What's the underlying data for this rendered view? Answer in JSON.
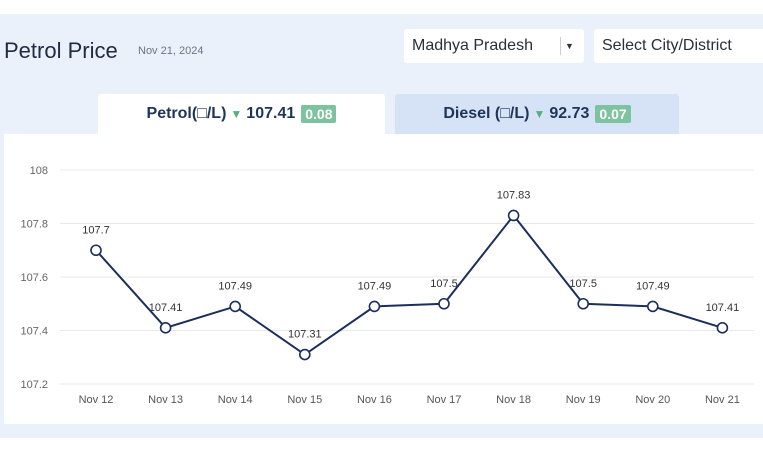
{
  "header": {
    "title": "Petrol Price",
    "date": "Nov 21, 2024",
    "state_select": "Madhya Pradesh",
    "city_select": "Select City/District"
  },
  "tabs": {
    "petrol": {
      "label": "Petrol(□/L)",
      "price": "107.41",
      "change": "0.08"
    },
    "diesel": {
      "label": "Diesel (□/L)",
      "price": "92.73",
      "change": "0.07"
    }
  },
  "colors": {
    "line": "#1c2f5a",
    "badge": "#7dc39f",
    "down_arrow": "#55b081"
  },
  "chart_data": {
    "type": "line",
    "x": [
      "Nov 12",
      "Nov 13",
      "Nov 14",
      "Nov 15",
      "Nov 16",
      "Nov 17",
      "Nov 18",
      "Nov 19",
      "Nov 20",
      "Nov 21"
    ],
    "series": [
      {
        "values": [
          107.7,
          107.41,
          107.49,
          107.31,
          107.49,
          107.5,
          107.83,
          107.5,
          107.49,
          107.41
        ],
        "labels": [
          "107.7",
          "107.41",
          "107.49",
          "107.31",
          "107.49",
          "107.5",
          "107.83",
          "107.5",
          "107.49",
          "107.41"
        ]
      }
    ],
    "yticks": [
      "107.2",
      "107.4",
      "107.6",
      "107.8",
      "108"
    ],
    "ylim": [
      107.2,
      108
    ],
    "grid": true
  }
}
